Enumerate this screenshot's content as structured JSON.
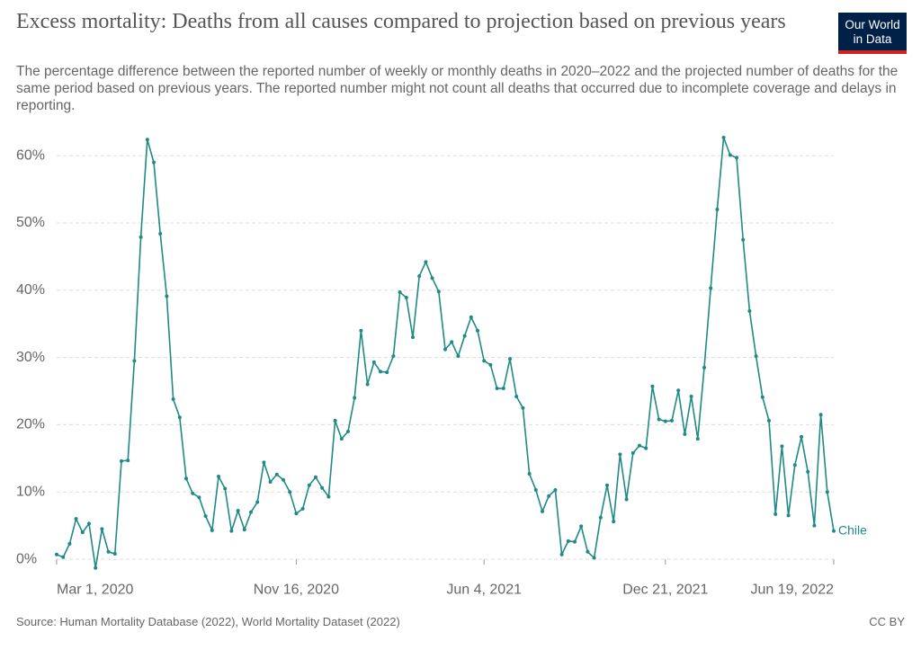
{
  "chart_data": {
    "type": "line",
    "title": "Excess mortality: Deaths from all causes compared to projection based on previous years",
    "subtitle": "The percentage difference between the reported number of weekly or monthly deaths in 2020–2022 and the projected number of deaths for the same period based on previous years. The reported number might not count all deaths that occurred due to incomplete coverage and delays in reporting.",
    "source": "Source: Human Mortality Database (2022), World Mortality Dataset (2022)",
    "license": "CC BY",
    "logo": [
      "Our World",
      "in Data"
    ],
    "categories": [
      "Mar 1, 2020",
      null,
      null,
      null,
      null,
      null,
      null,
      null,
      null,
      null,
      null,
      null,
      null,
      null,
      null,
      null,
      null,
      null,
      null,
      null,
      null,
      null,
      null,
      null,
      null,
      null,
      null,
      null,
      null,
      null,
      null,
      null,
      null,
      null,
      null,
      null,
      null,
      "Nov 16, 2020",
      null,
      null,
      null,
      null,
      null,
      null,
      null,
      null,
      null,
      null,
      null,
      null,
      null,
      null,
      null,
      null,
      null,
      null,
      null,
      null,
      null,
      null,
      null,
      null,
      null,
      null,
      null,
      null,
      "Jun 4, 2021",
      null,
      null,
      null,
      null,
      null,
      null,
      null,
      null,
      null,
      null,
      null,
      null,
      null,
      null,
      null,
      null,
      null,
      null,
      null,
      null,
      null,
      null,
      null,
      null,
      null,
      null,
      null,
      "Dec 21, 2021",
      null,
      null,
      null,
      null,
      null,
      null,
      null,
      null,
      null,
      null,
      null,
      null,
      null,
      null,
      null,
      null,
      null,
      null,
      null,
      null,
      null,
      null,
      null,
      null,
      null,
      "Jun 19, 2022"
    ],
    "series": [
      {
        "name": "Chile",
        "color": "#1f8a86",
        "values": [
          0.7,
          0.3,
          2.3,
          6,
          4,
          5.3,
          -1.3,
          4.5,
          1.1,
          0.8,
          14.6,
          14.7,
          29.5,
          47.9,
          62.4,
          59,
          48.4,
          39.1,
          23.8,
          21.1,
          12,
          9.8,
          9.2,
          6.4,
          4.3,
          12.3,
          10.5,
          4.2,
          7.2,
          4.4,
          7,
          8.5,
          14.4,
          11.5,
          12.6,
          11.8,
          10,
          6.8,
          7.5,
          11,
          12.2,
          10.6,
          9.3,
          20.6,
          17.9,
          19,
          24,
          34,
          26,
          29.3,
          27.9,
          27.8,
          30.2,
          39.7,
          38.9,
          33,
          42.1,
          44.2,
          41.8,
          39.8,
          31.2,
          32.3,
          30.2,
          33.2,
          36,
          34,
          29.5,
          28.9,
          25.4,
          25.4,
          29.8,
          24.2,
          22.5,
          12.7,
          10.3,
          7.1,
          9.4,
          10.3,
          0.7,
          2.7,
          2.6,
          4.9,
          1.1,
          0.2,
          6.2,
          11,
          5.6,
          15.6,
          8.9,
          15.8,
          16.9,
          16.5,
          25.7,
          20.8,
          20.5,
          20.6,
          25.1,
          18.6,
          24.2,
          17.9,
          28.5,
          40.3,
          52,
          62.7,
          60.1,
          59.7,
          47.5,
          36.9,
          30.2,
          24.1,
          20.6,
          6.7,
          16.8,
          6.5,
          14,
          18.2,
          13,
          5,
          21.5,
          10,
          4.2
        ]
      }
    ],
    "ylim": [
      -2,
      63.1
    ],
    "yticks": [
      {
        "value": 0,
        "label": "0%"
      },
      {
        "value": 10,
        "label": "10%"
      },
      {
        "value": 20,
        "label": "20%"
      },
      {
        "value": 30,
        "label": "30%"
      },
      {
        "value": 40,
        "label": "40%"
      },
      {
        "value": 50,
        "label": "50%"
      },
      {
        "value": 60,
        "label": "60%"
      }
    ],
    "grid": true
  }
}
